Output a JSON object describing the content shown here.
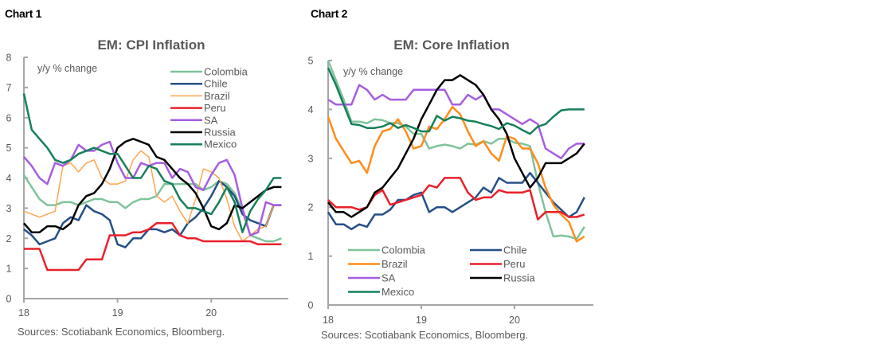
{
  "labels": {
    "chart1": "Chart 1",
    "chart2": "Chart 2"
  },
  "chart_data": [
    {
      "type": "line",
      "title": "EM: CPI Inflation",
      "unit_label": "y/y % change",
      "xlabel": "",
      "ylabel": "",
      "x_ticks": [
        "18",
        "19",
        "20"
      ],
      "y_ticks": [
        "0",
        "1",
        "2",
        "3",
        "4",
        "5",
        "6",
        "7",
        "8"
      ],
      "ylim": [
        0,
        8
      ],
      "x_range_months": [
        0,
        33
      ],
      "grid": false,
      "legend_position": "top-right",
      "source": "Sources: Scotiabank Economics, Bloomberg.",
      "series": [
        {
          "name": "Colombia",
          "color": "#7fc39b",
          "width": 2.5,
          "values": [
            4.1,
            3.7,
            3.3,
            3.1,
            3.1,
            3.2,
            3.2,
            3.1,
            3.2,
            3.3,
            3.3,
            3.2,
            3.2,
            3.0,
            3.2,
            3.3,
            3.3,
            3.4,
            3.8,
            3.8,
            3.8,
            3.8,
            3.8,
            3.6,
            3.7,
            3.9,
            3.8,
            3.5,
            2.9,
            2.1,
            2.0,
            1.9,
            1.9,
            2.0
          ]
        },
        {
          "name": "Chile",
          "color": "#264f87",
          "width": 2.5,
          "values": [
            2.3,
            2.1,
            1.8,
            1.9,
            2.0,
            2.5,
            2.7,
            2.6,
            3.1,
            2.9,
            2.8,
            2.6,
            1.8,
            1.7,
            2.0,
            2.0,
            2.3,
            2.3,
            2.2,
            2.3,
            2.1,
            2.5,
            2.7,
            3.0,
            3.4,
            3.9,
            3.7,
            3.4,
            2.8,
            2.6,
            2.5,
            2.4,
            3.1,
            3.1
          ]
        },
        {
          "name": "Brazil",
          "color": "#ffa550",
          "width": 1.5,
          "values": [
            2.9,
            2.8,
            2.7,
            2.8,
            2.9,
            4.4,
            4.5,
            4.2,
            4.5,
            4.6,
            4.0,
            3.8,
            3.8,
            3.9,
            4.6,
            4.9,
            4.7,
            3.4,
            3.2,
            3.4,
            2.9,
            2.5,
            3.3,
            4.3,
            4.2,
            4.0,
            3.3,
            2.4,
            1.9,
            2.1,
            2.3,
            2.4,
            3.1,
            3.1
          ]
        },
        {
          "name": "Peru",
          "color": "#e8202a",
          "width": 2.5,
          "values": [
            1.65,
            1.65,
            1.65,
            0.95,
            0.95,
            0.95,
            0.95,
            0.95,
            1.3,
            1.3,
            1.3,
            2.1,
            2.1,
            2.1,
            2.2,
            2.2,
            2.3,
            2.5,
            2.5,
            2.5,
            2.1,
            2.0,
            2.0,
            1.9,
            1.9,
            1.9,
            1.9,
            1.9,
            1.9,
            1.9,
            1.8,
            1.8,
            1.8,
            1.8
          ]
        },
        {
          "name": "SA",
          "color": "#a65ee0",
          "width": 2.5,
          "values": [
            4.7,
            4.4,
            4.0,
            3.8,
            4.5,
            4.4,
            4.6,
            5.1,
            4.9,
            4.9,
            5.1,
            5.2,
            4.5,
            4.0,
            4.0,
            4.5,
            4.4,
            4.5,
            4.5,
            4.0,
            4.3,
            4.2,
            3.7,
            3.6,
            4.1,
            4.5,
            4.6,
            4.1,
            3.0,
            2.1,
            2.2,
            3.2,
            3.1,
            3.1
          ]
        },
        {
          "name": "Russia",
          "color": "#000000",
          "width": 2.5,
          "values": [
            2.5,
            2.2,
            2.2,
            2.4,
            2.4,
            2.3,
            2.5,
            3.1,
            3.4,
            3.5,
            3.8,
            4.3,
            5.0,
            5.2,
            5.3,
            5.2,
            5.1,
            4.7,
            4.6,
            4.3,
            4.0,
            3.8,
            3.5,
            3.0,
            2.4,
            2.3,
            2.5,
            3.1,
            3.0,
            3.2,
            3.4,
            3.6,
            3.7,
            3.7
          ]
        },
        {
          "name": "Mexico",
          "color": "#16805a",
          "width": 2.5,
          "values": [
            6.8,
            5.6,
            5.3,
            5.0,
            4.6,
            4.5,
            4.6,
            4.8,
            4.9,
            5.0,
            4.9,
            4.8,
            4.8,
            4.4,
            4.0,
            4.0,
            4.4,
            4.3,
            3.9,
            3.8,
            3.3,
            3.0,
            3.0,
            2.9,
            2.8,
            3.2,
            3.7,
            3.2,
            2.2,
            2.9,
            3.3,
            3.6,
            4.0,
            4.0
          ]
        }
      ]
    },
    {
      "type": "line",
      "title": "EM: Core Inflation",
      "unit_label": "y/y  % change",
      "xlabel": "",
      "ylabel": "",
      "x_ticks": [
        "18",
        "19",
        "20"
      ],
      "y_ticks": [
        "0",
        "1",
        "2",
        "3",
        "4",
        "5"
      ],
      "ylim": [
        0,
        5
      ],
      "x_range_months": [
        0,
        33
      ],
      "grid": false,
      "legend_position": "bottom-left",
      "source": "Sources: Scotiabank Economics, Bloomberg.",
      "series": [
        {
          "name": "Colombia",
          "color": "#7fc39b",
          "width": 2.5,
          "values": [
            5.0,
            4.6,
            4.2,
            3.75,
            3.75,
            3.72,
            3.8,
            3.78,
            3.72,
            3.72,
            3.65,
            3.5,
            3.5,
            3.2,
            3.25,
            3.28,
            3.25,
            3.2,
            3.3,
            3.28,
            3.35,
            3.3,
            3.4,
            3.4,
            3.32,
            3.3,
            3.25,
            2.5,
            1.9,
            1.4,
            1.42,
            1.4,
            1.35,
            1.6
          ]
        },
        {
          "name": "Chile",
          "color": "#264f87",
          "width": 2.5,
          "values": [
            1.9,
            1.65,
            1.65,
            1.55,
            1.65,
            1.6,
            1.85,
            1.85,
            1.95,
            2.15,
            2.15,
            2.25,
            2.3,
            1.9,
            2.0,
            2.0,
            1.9,
            2.0,
            2.1,
            2.2,
            2.4,
            2.3,
            2.6,
            2.5,
            2.5,
            2.5,
            2.7,
            2.5,
            2.3,
            2.1,
            1.95,
            1.8,
            1.9,
            2.2
          ]
        },
        {
          "name": "Brazil",
          "color": "#ff8c1a",
          "width": 2.5,
          "values": [
            3.85,
            3.4,
            3.15,
            2.9,
            2.95,
            2.7,
            3.25,
            3.55,
            3.6,
            3.8,
            3.55,
            3.2,
            3.25,
            3.65,
            3.6,
            3.8,
            4.05,
            3.9,
            3.55,
            3.25,
            3.35,
            3.1,
            2.95,
            3.45,
            3.4,
            3.2,
            3.2,
            2.9,
            2.4,
            2.05,
            1.85,
            1.7,
            1.3,
            1.4
          ]
        },
        {
          "name": "Peru",
          "color": "#e8202a",
          "width": 2.5,
          "values": [
            2.15,
            2.0,
            2.0,
            2.0,
            1.95,
            2.0,
            2.25,
            2.35,
            2.05,
            2.1,
            2.15,
            2.2,
            2.25,
            2.45,
            2.4,
            2.6,
            2.6,
            2.6,
            2.3,
            2.15,
            2.2,
            2.2,
            2.35,
            2.3,
            2.3,
            2.3,
            2.35,
            1.75,
            1.9,
            1.9,
            1.9,
            1.8,
            1.8,
            1.85
          ]
        },
        {
          "name": "SA",
          "color": "#a65ee0",
          "width": 2.5,
          "values": [
            4.2,
            4.1,
            4.1,
            4.1,
            4.5,
            4.4,
            4.2,
            4.3,
            4.2,
            4.2,
            4.2,
            4.4,
            4.4,
            4.4,
            4.4,
            4.4,
            4.1,
            4.1,
            4.3,
            4.2,
            4.3,
            4.0,
            4.0,
            3.9,
            3.8,
            3.7,
            3.8,
            3.7,
            3.2,
            3.1,
            3.0,
            3.2,
            3.3,
            3.3
          ]
        },
        {
          "name": "Russia",
          "color": "#000000",
          "width": 2.5,
          "values": [
            2.1,
            1.9,
            1.9,
            1.8,
            1.9,
            2.0,
            2.3,
            2.4,
            2.6,
            2.8,
            3.1,
            3.4,
            3.8,
            4.1,
            4.4,
            4.6,
            4.6,
            4.7,
            4.6,
            4.5,
            4.3,
            4.0,
            3.8,
            3.5,
            3.0,
            2.7,
            2.4,
            2.6,
            2.9,
            2.9,
            2.9,
            3.0,
            3.1,
            3.3
          ]
        },
        {
          "name": "Mexico",
          "color": "#16805a",
          "width": 2.5,
          "values": [
            4.85,
            4.5,
            4.1,
            3.7,
            3.68,
            3.62,
            3.62,
            3.65,
            3.72,
            3.62,
            3.68,
            3.62,
            3.55,
            3.55,
            3.87,
            3.77,
            3.85,
            3.82,
            3.77,
            3.75,
            3.7,
            3.66,
            3.6,
            3.72,
            3.67,
            3.58,
            3.5,
            3.65,
            3.7,
            3.85,
            3.98,
            4.0,
            4.0,
            4.0
          ]
        }
      ]
    }
  ]
}
